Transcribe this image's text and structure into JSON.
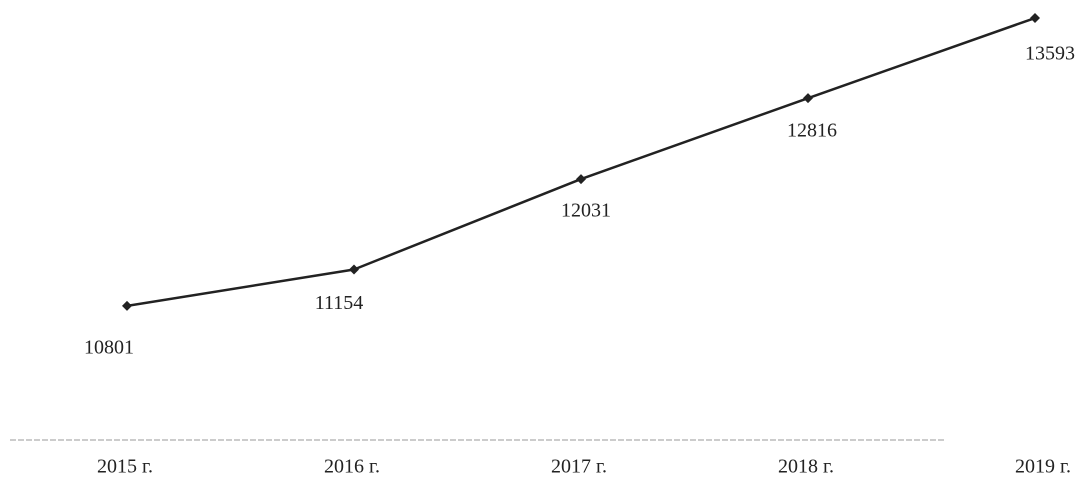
{
  "chart_data": {
    "type": "line",
    "categories": [
      "2015 г.",
      "2016 г.",
      "2017 г.",
      "2018 г.",
      "2019 г."
    ],
    "values": [
      10801,
      11154,
      12031,
      12816,
      13593
    ],
    "color": "#222222",
    "ylim": [
      9500,
      13700
    ]
  }
}
